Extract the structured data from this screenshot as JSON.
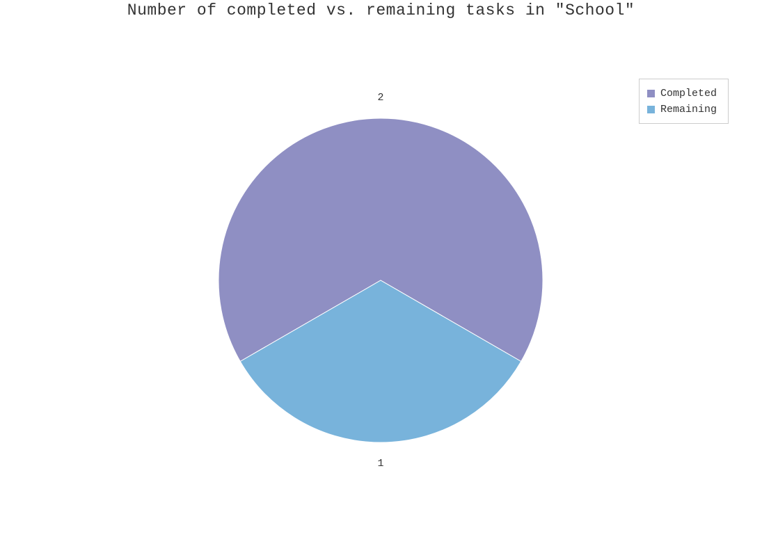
{
  "chart_data": {
    "type": "pie",
    "title": "Number of completed vs. remaining tasks in \"School\"",
    "categories": [
      "Completed",
      "Remaining"
    ],
    "values": [
      2,
      1
    ],
    "data_labels": [
      "2",
      "1"
    ],
    "colors": [
      "#8f8fc3",
      "#78b3db"
    ],
    "legend": {
      "placement": "top-right",
      "entries": [
        "Completed",
        "Remaining"
      ]
    }
  }
}
